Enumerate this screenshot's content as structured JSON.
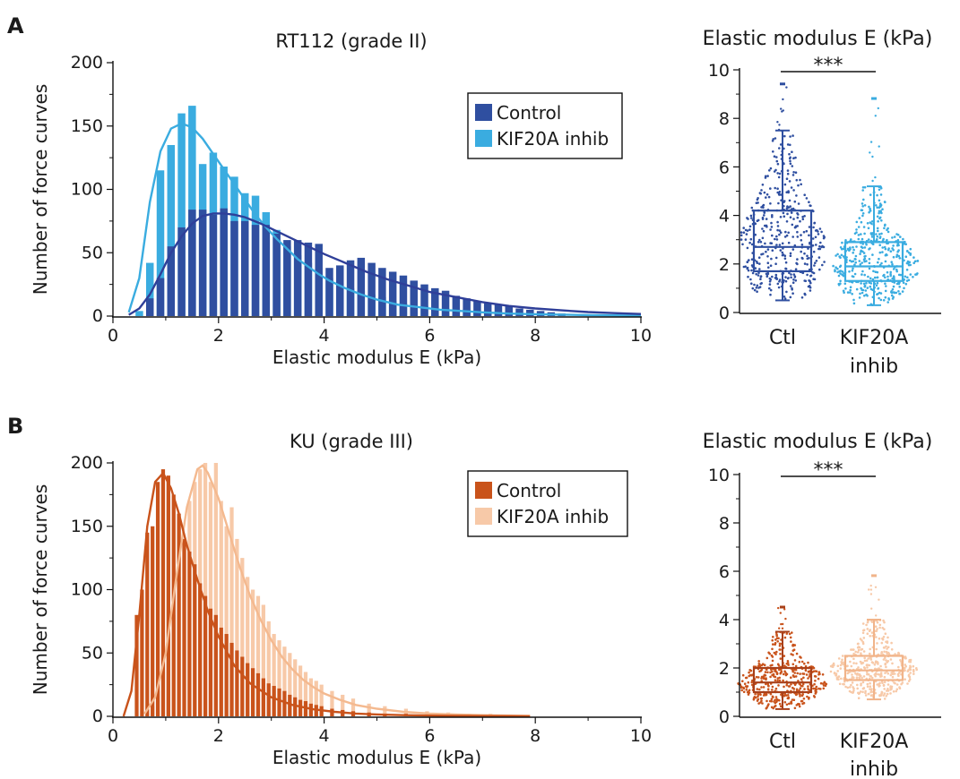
{
  "panels": {
    "a": {
      "letter": "A",
      "hist_title": "RT112 (grade II)",
      "box_title": "Elastic modulus E (kPa)",
      "sig": "***",
      "cat1": "Ctl",
      "cat2_l1": "KIF20A",
      "cat2_l2": "inhib"
    },
    "b": {
      "letter": "B",
      "hist_title": "KU (grade III)",
      "box_title": "Elastic modulus E (kPa)",
      "sig": "***",
      "cat1": "Ctl",
      "cat2_l1": "KIF20A",
      "cat2_l2": "inhib"
    }
  },
  "chart_data": [
    {
      "type": "bar",
      "title": "RT112 (grade II)",
      "xlabel": "Elastic modulus E (kPa)",
      "ylabel": "Number of force curves",
      "xlim": [
        0,
        10
      ],
      "ylim": [
        0,
        200
      ],
      "xticks": [
        "0",
        "2",
        "4",
        "6",
        "8",
        "10"
      ],
      "yticks": [
        "0",
        "50",
        "100",
        "150",
        "200"
      ],
      "legend_position": "top-right",
      "bin_width": 0.2,
      "series": [
        {
          "name": "KIF20A inhib",
          "color": "#3AACE0",
          "bins_x": [
            0.5,
            0.7,
            0.9,
            1.1,
            1.3,
            1.5,
            1.7,
            1.9,
            2.1,
            2.3,
            2.5,
            2.7,
            2.9,
            3.1,
            3.3,
            3.5,
            3.7,
            3.9,
            4.1,
            4.3,
            4.5,
            4.7,
            4.9,
            5.1,
            5.3,
            5.5,
            5.7,
            5.9,
            6.1,
            6.3,
            6.5,
            6.7,
            6.9,
            7.1,
            7.3
          ],
          "values": [
            4,
            42,
            115,
            135,
            160,
            166,
            120,
            129,
            118,
            110,
            97,
            95,
            82,
            68,
            55,
            48,
            42,
            35,
            30,
            26,
            22,
            20,
            17,
            15,
            12,
            10,
            9,
            8,
            7,
            6,
            5,
            5,
            4,
            3,
            2
          ],
          "fit_x": [
            0.3,
            0.5,
            0.7,
            0.9,
            1.1,
            1.3,
            1.5,
            1.7,
            1.9,
            2.1,
            2.3,
            2.5,
            2.7,
            2.9,
            3.1,
            3.3,
            3.5,
            3.7,
            3.9,
            4.1,
            4.4,
            4.7,
            5.0,
            5.4,
            5.8,
            6.2,
            6.6,
            7.0,
            7.5,
            8.0,
            8.5,
            9.0,
            9.5,
            10.0
          ],
          "fit_y": [
            3,
            30,
            90,
            130,
            148,
            152,
            149,
            140,
            128,
            116,
            104,
            92,
            80,
            70,
            61,
            53,
            45,
            39,
            33,
            28,
            22,
            17,
            13,
            9,
            7,
            5,
            4,
            3,
            2,
            1.5,
            1.1,
            0.8,
            0.6,
            0.4
          ]
        },
        {
          "name": "Control",
          "color": "#2F4FA0",
          "bins_x": [
            0.7,
            0.9,
            1.1,
            1.3,
            1.5,
            1.7,
            1.9,
            2.1,
            2.3,
            2.5,
            2.7,
            2.9,
            3.1,
            3.3,
            3.5,
            3.7,
            3.9,
            4.1,
            4.3,
            4.5,
            4.7,
            4.9,
            5.1,
            5.3,
            5.5,
            5.7,
            5.9,
            6.1,
            6.3,
            6.5,
            6.7,
            6.9,
            7.1,
            7.3,
            7.5,
            7.7,
            7.9,
            8.1,
            8.3,
            8.5
          ],
          "values": [
            14,
            30,
            55,
            70,
            84,
            84,
            80,
            85,
            75,
            75,
            72,
            72,
            65,
            60,
            60,
            58,
            57,
            38,
            40,
            44,
            46,
            42,
            38,
            35,
            32,
            28,
            25,
            22,
            20,
            16,
            14,
            12,
            10,
            9,
            8,
            6,
            5,
            4,
            3,
            2
          ],
          "fit_x": [
            0.3,
            0.5,
            0.7,
            0.9,
            1.1,
            1.3,
            1.5,
            1.7,
            1.9,
            2.1,
            2.3,
            2.5,
            2.8,
            3.1,
            3.4,
            3.7,
            4.0,
            4.4,
            4.8,
            5.2,
            5.6,
            6.0,
            6.5,
            7.0,
            7.5,
            8.0,
            8.5,
            9.0,
            9.5,
            10.0
          ],
          "fit_y": [
            1,
            6,
            17,
            33,
            50,
            63,
            73,
            79,
            81,
            81,
            80,
            78,
            73,
            67,
            61,
            55,
            49,
            42,
            35,
            29,
            24,
            19,
            15,
            11,
            8,
            6,
            4.5,
            3.2,
            2.3,
            1.6
          ]
        }
      ]
    },
    {
      "type": "box",
      "title": "Elastic modulus E (kPa)",
      "categories": [
        "Ctl",
        "KIF20A inhib"
      ],
      "ylim": [
        0,
        10
      ],
      "yticks": [
        "0",
        "2",
        "4",
        "6",
        "8",
        "10"
      ],
      "significance": "***",
      "series": [
        {
          "name": "Ctl",
          "color": "#2F4FA0",
          "whisker_low": 0.5,
          "q1": 1.7,
          "median": 2.7,
          "q3": 4.2,
          "whisker_high": 7.5,
          "max": 9.4
        },
        {
          "name": "KIF20A inhib",
          "color": "#3AACE0",
          "whisker_low": 0.3,
          "q1": 1.3,
          "median": 1.9,
          "q3": 2.9,
          "whisker_high": 5.2,
          "max": 8.8
        }
      ]
    },
    {
      "type": "bar",
      "title": "KU (grade III)",
      "xlabel": "Elastic modulus E (kPa)",
      "ylabel": "Number of force curves",
      "xlim": [
        0,
        10
      ],
      "ylim": [
        0,
        200
      ],
      "xticks": [
        "0",
        "2",
        "4",
        "6",
        "8",
        "10"
      ],
      "yticks": [
        "0",
        "50",
        "100",
        "150",
        "200"
      ],
      "legend_position": "top-right",
      "bin_width": 0.1,
      "series": [
        {
          "name": "KIF20A inhib",
          "color": "#F7C9A8",
          "bins_x": [
            0.75,
            0.85,
            0.95,
            1.05,
            1.15,
            1.25,
            1.35,
            1.45,
            1.55,
            1.65,
            1.75,
            1.85,
            1.95,
            2.05,
            2.15,
            2.25,
            2.35,
            2.45,
            2.55,
            2.65,
            2.75,
            2.85,
            2.95,
            3.05,
            3.15,
            3.25,
            3.35,
            3.45,
            3.55,
            3.65,
            3.75,
            3.85,
            3.95,
            4.15,
            4.35,
            4.55,
            4.85,
            5.15,
            5.55,
            5.95,
            6.35,
            6.75,
            7.15,
            7.55,
            7.85
          ],
          "values": [
            8,
            20,
            35,
            55,
            80,
            110,
            140,
            170,
            185,
            195,
            200,
            185,
            200,
            170,
            150,
            165,
            140,
            125,
            110,
            100,
            95,
            88,
            75,
            65,
            60,
            55,
            50,
            45,
            40,
            35,
            30,
            28,
            25,
            20,
            17,
            14,
            10,
            8,
            6,
            4,
            3,
            2,
            2,
            1,
            1
          ],
          "fit_x": [
            0.6,
            0.8,
            1.0,
            1.2,
            1.4,
            1.6,
            1.7,
            1.8,
            2.0,
            2.2,
            2.4,
            2.6,
            2.8,
            3.0,
            3.2,
            3.4,
            3.6,
            3.8,
            4.0,
            4.3,
            4.6,
            5.0,
            5.5,
            6.0,
            6.5,
            7.0,
            7.5,
            7.9
          ],
          "fit_y": [
            2,
            15,
            50,
            110,
            165,
            195,
            198,
            192,
            172,
            145,
            118,
            95,
            76,
            60,
            47,
            37,
            29,
            23,
            18,
            13,
            9,
            6,
            3.5,
            2.2,
            1.4,
            0.9,
            0.6,
            0.4
          ]
        },
        {
          "name": "Control",
          "color": "#C9531B",
          "bins_x": [
            0.45,
            0.55,
            0.65,
            0.75,
            0.85,
            0.95,
            1.05,
            1.15,
            1.25,
            1.35,
            1.45,
            1.55,
            1.65,
            1.75,
            1.85,
            1.95,
            2.05,
            2.15,
            2.25,
            2.35,
            2.45,
            2.55,
            2.65,
            2.75,
            2.85,
            2.95,
            3.05,
            3.15,
            3.25,
            3.35,
            3.45,
            3.55,
            3.65,
            3.75,
            3.85,
            3.95,
            4.15,
            4.35,
            4.55,
            4.85,
            5.15,
            5.55,
            5.95
          ],
          "values": [
            80,
            100,
            145,
            150,
            185,
            195,
            190,
            175,
            160,
            140,
            130,
            120,
            105,
            95,
            85,
            80,
            70,
            65,
            58,
            52,
            47,
            42,
            38,
            34,
            30,
            26,
            24,
            22,
            20,
            17,
            15,
            13,
            12,
            10,
            9,
            8,
            6,
            5,
            4,
            3,
            2,
            2,
            1
          ],
          "fit_x": [
            0.2,
            0.35,
            0.5,
            0.65,
            0.8,
            0.95,
            1.1,
            1.25,
            1.4,
            1.6,
            1.8,
            2.0,
            2.3,
            2.6,
            3.0,
            3.4,
            3.8,
            4.2,
            4.6,
            5.0,
            5.5,
            6.0,
            6.5,
            7.0,
            7.5,
            7.9
          ],
          "fit_y": [
            0,
            20,
            80,
            150,
            185,
            192,
            180,
            160,
            135,
            108,
            83,
            63,
            40,
            26,
            15,
            9,
            5.5,
            3.5,
            2.2,
            1.5,
            0.9,
            0.6,
            0.4,
            0.3,
            0.2,
            0.1
          ]
        }
      ]
    },
    {
      "type": "box",
      "title": "Elastic modulus E (kPa)",
      "categories": [
        "Ctl",
        "KIF20A inhib"
      ],
      "ylim": [
        0,
        10
      ],
      "yticks": [
        "0",
        "2",
        "4",
        "6",
        "8",
        "10"
      ],
      "significance": "***",
      "series": [
        {
          "name": "Ctl",
          "color": "#C9531B",
          "whisker_low": 0.3,
          "q1": 1.0,
          "median": 1.4,
          "q3": 2.0,
          "whisker_high": 3.5,
          "max": 4.5
        },
        {
          "name": "KIF20A inhib",
          "color": "#F7C9A8",
          "whisker_low": 0.7,
          "q1": 1.5,
          "median": 1.9,
          "q3": 2.5,
          "whisker_high": 4.0,
          "max": 5.8
        }
      ]
    }
  ]
}
